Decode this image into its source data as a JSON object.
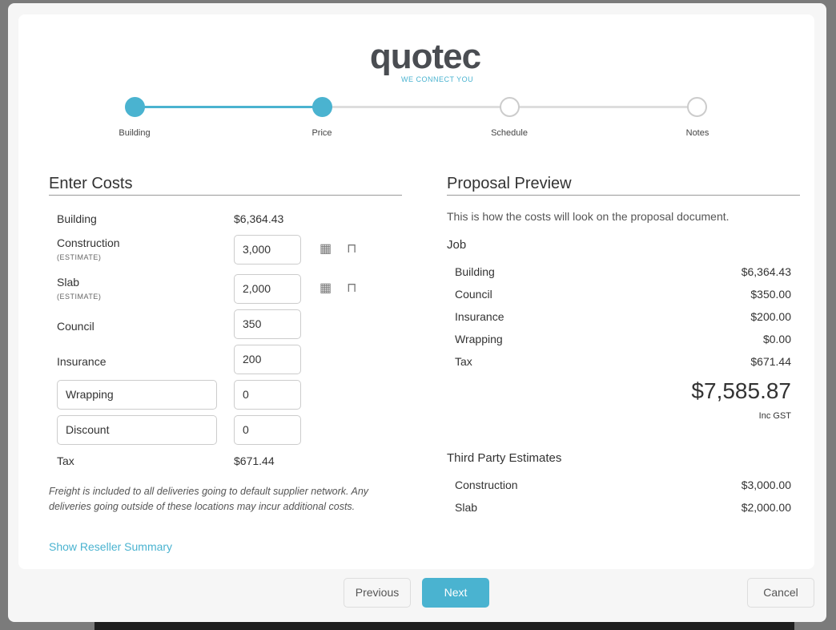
{
  "logo": {
    "word": "quotec",
    "tagline": "WE CONNECT YOU"
  },
  "steps": [
    {
      "label": "Building",
      "done": true
    },
    {
      "label": "Price",
      "done": true
    },
    {
      "label": "Schedule",
      "done": false
    },
    {
      "label": "Notes",
      "done": false
    }
  ],
  "enter_costs": {
    "title": "Enter Costs",
    "building": {
      "label": "Building",
      "value": "$6,364.43"
    },
    "construction": {
      "label": "Construction",
      "sub": "(ESTIMATE)",
      "value": "3,000"
    },
    "slab": {
      "label": "Slab",
      "sub": "(ESTIMATE)",
      "value": "2,000"
    },
    "council": {
      "label": "Council",
      "value": "350"
    },
    "insurance": {
      "label": "Insurance",
      "value": "200"
    },
    "wrapping": {
      "label": "Wrapping",
      "value": "0"
    },
    "discount": {
      "label": "Discount",
      "value": "0"
    },
    "tax": {
      "label": "Tax",
      "value": "$671.44"
    },
    "note": "Freight is included to all deliveries going to default supplier network. Any deliveries going outside of these locations may incur additional costs.",
    "reseller_link": "Show Reseller Summary"
  },
  "preview": {
    "title": "Proposal Preview",
    "intro": "This is how the costs will look on the proposal document.",
    "job_heading": "Job",
    "job": [
      {
        "label": "Building",
        "value": "$6,364.43"
      },
      {
        "label": "Council",
        "value": "$350.00"
      },
      {
        "label": "Insurance",
        "value": "$200.00"
      },
      {
        "label": "Wrapping",
        "value": "$0.00"
      },
      {
        "label": "Tax",
        "value": "$671.44"
      }
    ],
    "total": "$7,585.87",
    "total_note": "Inc GST",
    "third_heading": "Third Party Estimates",
    "third": [
      {
        "label": "Construction",
        "value": "$3,000.00"
      },
      {
        "label": "Slab",
        "value": "$2,000.00"
      }
    ]
  },
  "footer": {
    "previous": "Previous",
    "next": "Next",
    "cancel": "Cancel"
  },
  "colors": {
    "accent": "#4ab3d0"
  }
}
